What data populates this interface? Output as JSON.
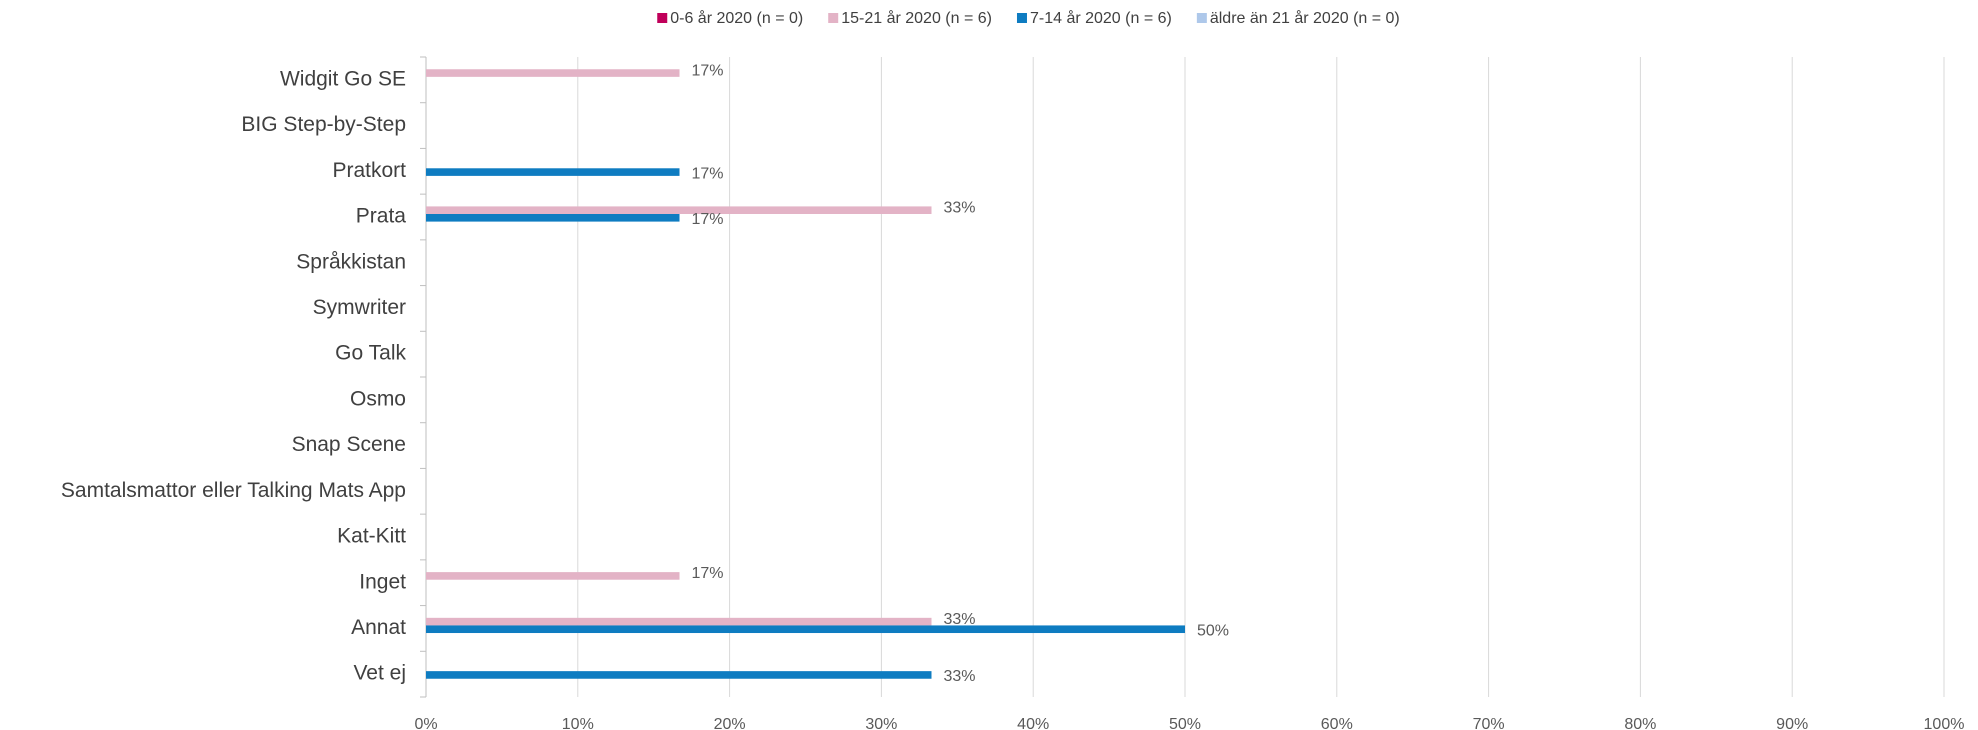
{
  "chart_data": {
    "type": "bar",
    "orientation": "horizontal",
    "categories": [
      "Widgit Go SE",
      "BIG Step-by-Step",
      "Pratkort",
      "Prata",
      "Språkkistan",
      "Symwriter",
      "Go Talk",
      "Osmo",
      "Snap Scene",
      "Samtalsmattor eller Talking Mats App",
      "Kat-Kitt",
      "Inget",
      "Annat",
      "Vet ej"
    ],
    "series": [
      {
        "name": "0-6 år 2020 (n = 0)",
        "color": "#c0005a",
        "values": [
          0,
          0,
          0,
          0,
          0,
          0,
          0,
          0,
          0,
          0,
          0,
          0,
          0,
          0
        ]
      },
      {
        "name": "15-21 år 2020 (n = 6)",
        "color": "#e3b3c6",
        "values": [
          16.7,
          0,
          0,
          33.3,
          0,
          0,
          0,
          0,
          0,
          0,
          0,
          16.7,
          33.3,
          0
        ],
        "value_labels": [
          "17%",
          null,
          null,
          "33%",
          null,
          null,
          null,
          null,
          null,
          null,
          null,
          "17%",
          "33%",
          null
        ]
      },
      {
        "name": "7-14 år 2020 (n = 6)",
        "color": "#0e7cc1",
        "values": [
          0,
          0,
          16.7,
          16.7,
          0,
          0,
          0,
          0,
          0,
          0,
          0,
          0,
          50,
          33.3
        ],
        "value_labels": [
          null,
          null,
          "17%",
          "17%",
          null,
          null,
          null,
          null,
          null,
          null,
          null,
          null,
          "50%",
          "33%"
        ]
      },
      {
        "name": "äldre än 21 år 2020 (n = 0)",
        "color": "#aec8ea",
        "values": [
          0,
          0,
          0,
          0,
          0,
          0,
          0,
          0,
          0,
          0,
          0,
          0,
          0,
          0
        ]
      }
    ],
    "xlim": [
      0,
      100
    ],
    "xticks": [
      {
        "value": 0,
        "label": "0%"
      },
      {
        "value": 10,
        "label": "10%"
      },
      {
        "value": 20,
        "label": "20%"
      },
      {
        "value": 30,
        "label": "30%"
      },
      {
        "value": 40,
        "label": "40%"
      },
      {
        "value": 50,
        "label": "50%"
      },
      {
        "value": 60,
        "label": "60%"
      },
      {
        "value": 70,
        "label": "70%"
      },
      {
        "value": 80,
        "label": "80%"
      },
      {
        "value": 90,
        "label": "90%"
      },
      {
        "value": 100,
        "label": "100%"
      }
    ],
    "grid": true,
    "legend": "top"
  }
}
